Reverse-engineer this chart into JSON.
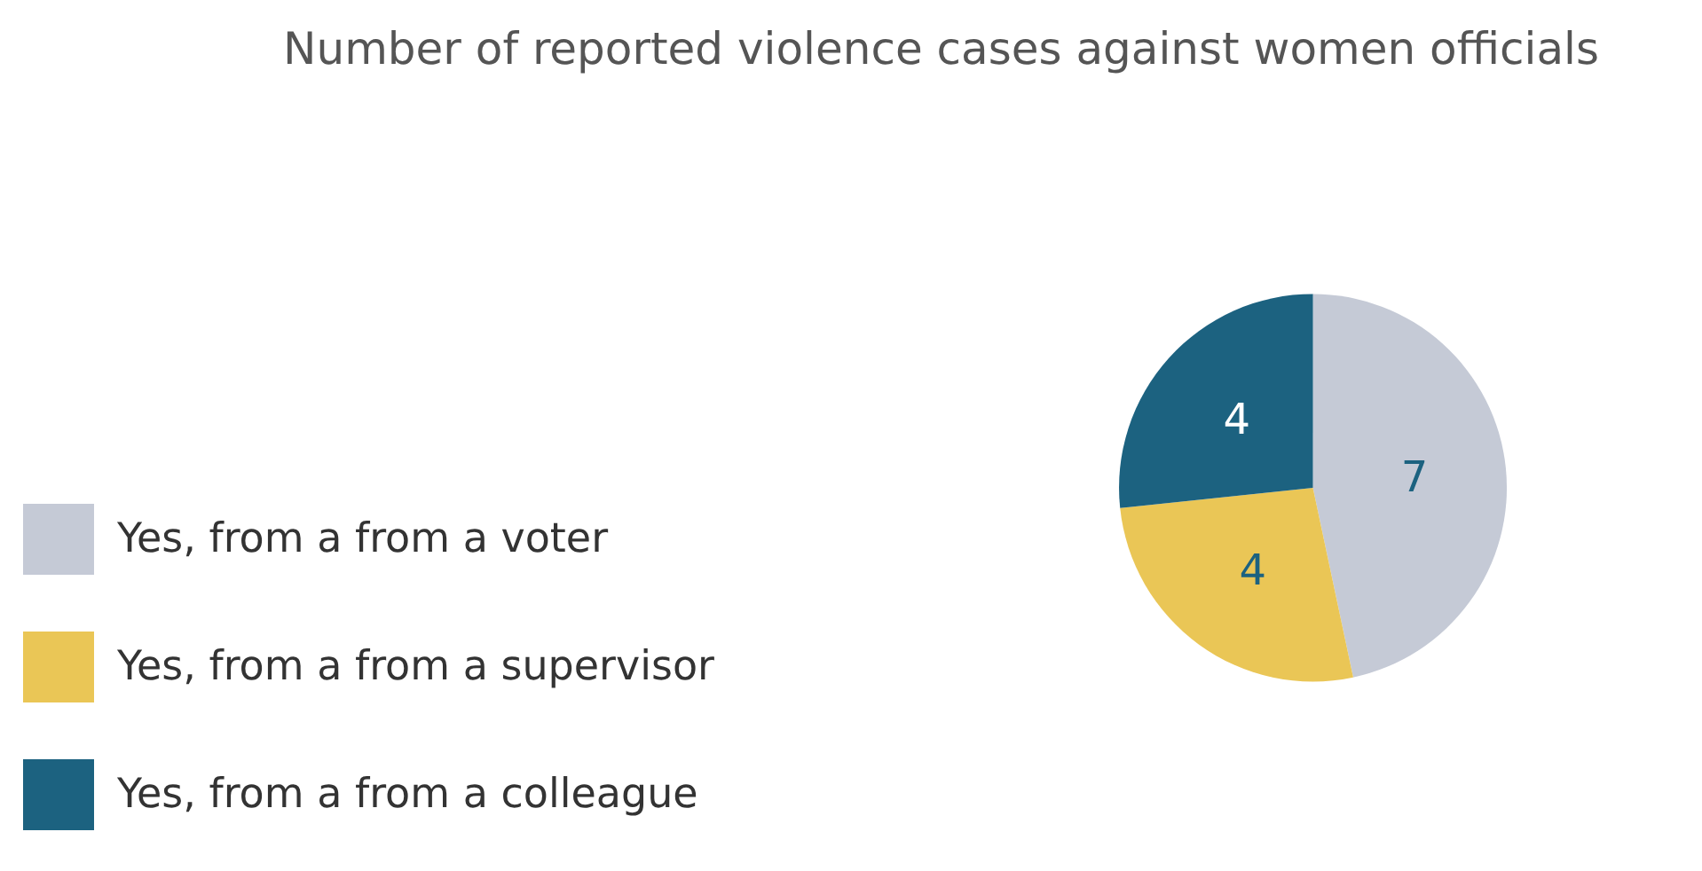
{
  "chart_data": {
    "type": "pie",
    "title": "Number of reported violence cases against women officials",
    "categories": [
      "Yes, from a from a voter",
      "Yes, from a from a supervisor",
      "Yes, from a from a colleague"
    ],
    "values": [
      7,
      4,
      4
    ],
    "colors": [
      "#c5cad6",
      "#eac656",
      "#1c6280"
    ],
    "data_labels": true,
    "legend": "bottom left"
  }
}
